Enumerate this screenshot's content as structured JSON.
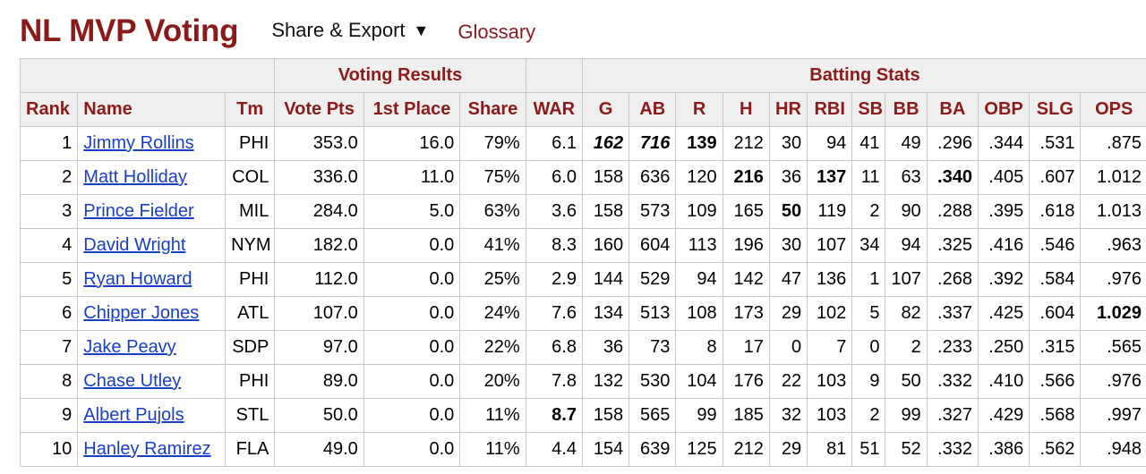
{
  "header": {
    "title": "NL MVP Voting",
    "share_export": "Share & Export",
    "share_caret": "▼",
    "glossary": "Glossary"
  },
  "table": {
    "over_headers": [
      "",
      "Voting Results",
      "",
      "Batting Stats"
    ],
    "columns": [
      "Rank",
      "Name",
      "Tm",
      "Vote Pts",
      "1st Place",
      "Share",
      "WAR",
      "G",
      "AB",
      "R",
      "H",
      "HR",
      "RBI",
      "SB",
      "BB",
      "BA",
      "OBP",
      "SLG",
      "OPS"
    ],
    "rows": [
      [
        "1",
        "Jimmy Rollins",
        "PHI",
        "353.0",
        "16.0",
        "79%",
        "6.1",
        "162",
        "716",
        "139",
        "212",
        "30",
        "94",
        "41",
        "49",
        ".296",
        ".344",
        ".531",
        ".875"
      ],
      [
        "2",
        "Matt Holliday",
        "COL",
        "336.0",
        "11.0",
        "75%",
        "6.0",
        "158",
        "636",
        "120",
        "216",
        "36",
        "137",
        "11",
        "63",
        ".340",
        ".405",
        ".607",
        "1.012"
      ],
      [
        "3",
        "Prince Fielder",
        "MIL",
        "284.0",
        "5.0",
        "63%",
        "3.6",
        "158",
        "573",
        "109",
        "165",
        "50",
        "119",
        "2",
        "90",
        ".288",
        ".395",
        ".618",
        "1.013"
      ],
      [
        "4",
        "David Wright",
        "NYM",
        "182.0",
        "0.0",
        "41%",
        "8.3",
        "160",
        "604",
        "113",
        "196",
        "30",
        "107",
        "34",
        "94",
        ".325",
        ".416",
        ".546",
        ".963"
      ],
      [
        "5",
        "Ryan Howard",
        "PHI",
        "112.0",
        "0.0",
        "25%",
        "2.9",
        "144",
        "529",
        "94",
        "142",
        "47",
        "136",
        "1",
        "107",
        ".268",
        ".392",
        ".584",
        ".976"
      ],
      [
        "6",
        "Chipper Jones",
        "ATL",
        "107.0",
        "0.0",
        "24%",
        "7.6",
        "134",
        "513",
        "108",
        "173",
        "29",
        "102",
        "5",
        "82",
        ".337",
        ".425",
        ".604",
        "1.029"
      ],
      [
        "7",
        "Jake Peavy",
        "SDP",
        "97.0",
        "0.0",
        "22%",
        "6.8",
        "36",
        "73",
        "8",
        "17",
        "0",
        "7",
        "0",
        "2",
        ".233",
        ".250",
        ".315",
        ".565"
      ],
      [
        "8",
        "Chase Utley",
        "PHI",
        "89.0",
        "0.0",
        "20%",
        "7.8",
        "132",
        "530",
        "104",
        "176",
        "22",
        "103",
        "9",
        "50",
        ".332",
        ".410",
        ".566",
        ".976"
      ],
      [
        "9",
        "Albert Pujols",
        "STL",
        "50.0",
        "0.0",
        "11%",
        "8.7",
        "158",
        "565",
        "99",
        "185",
        "32",
        "103",
        "2",
        "99",
        ".327",
        ".429",
        ".568",
        ".997"
      ],
      [
        "10",
        "Hanley Ramirez",
        "FLA",
        "49.0",
        "0.0",
        "11%",
        "4.4",
        "154",
        "639",
        "125",
        "212",
        "29",
        "81",
        "51",
        "52",
        ".332",
        ".386",
        ".562",
        ".948"
      ]
    ],
    "emphasis": {
      "bold_italic": [
        [
          0,
          7
        ],
        [
          0,
          8
        ]
      ],
      "bold": [
        [
          0,
          9
        ],
        [
          1,
          10
        ],
        [
          1,
          12
        ],
        [
          1,
          15
        ],
        [
          2,
          11
        ],
        [
          5,
          18
        ],
        [
          8,
          6
        ]
      ]
    }
  },
  "colors": {
    "title": "#8b1a1a",
    "link": "#1a3fc7",
    "header_bg": "#efefef",
    "border": "#c7c7c7"
  }
}
